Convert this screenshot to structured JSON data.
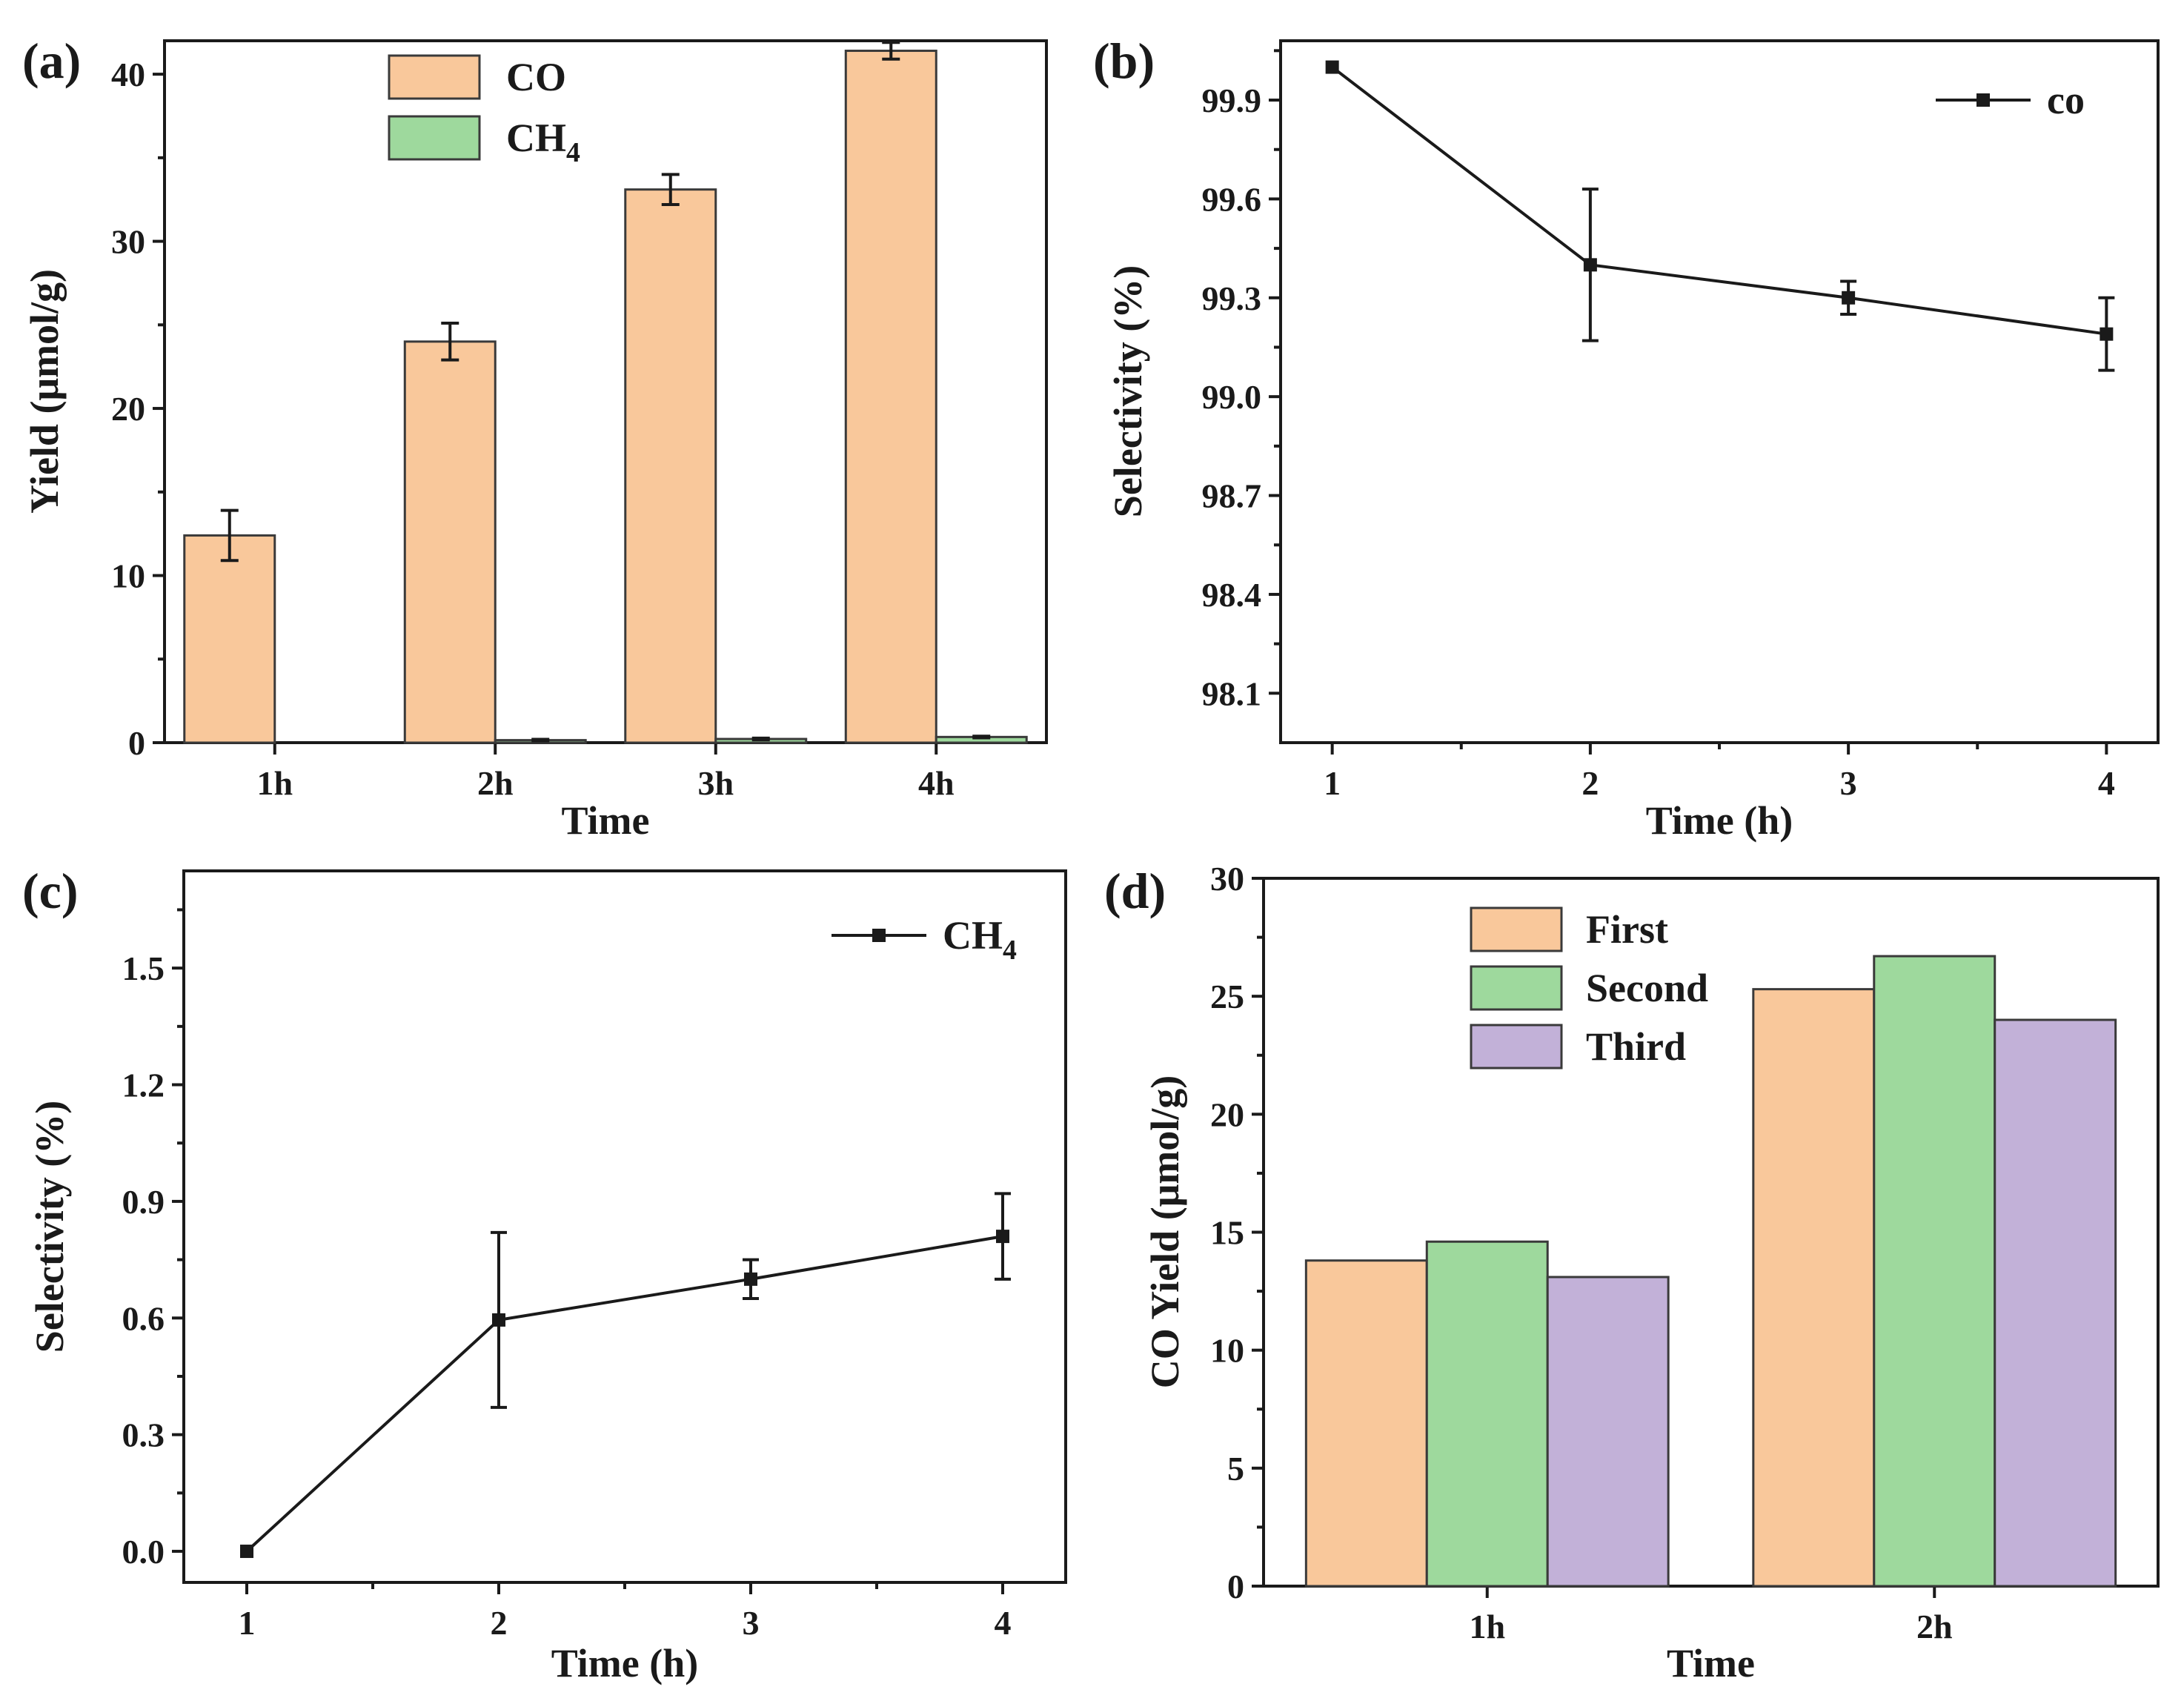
{
  "chart_data": [
    {
      "panel": "(a)",
      "type": "bar",
      "xlabel": "Time",
      "ylabel": "Yield (μmol/g)",
      "ylim": [
        0,
        42
      ],
      "yticks": [
        "0",
        "10",
        "20",
        "30",
        "40"
      ],
      "categories": [
        "1h",
        "2h",
        "3h",
        "4h"
      ],
      "series": [
        {
          "name": "CO",
          "color": "#f9c89b",
          "values": [
            12.4,
            24.0,
            33.1,
            41.4
          ],
          "errors": [
            1.5,
            1.1,
            0.9,
            0.5
          ]
        },
        {
          "name": "CH",
          "sub": "4",
          "color": "#9ed99d",
          "values": [
            0.0,
            0.15,
            0.22,
            0.34
          ],
          "errors": [
            0.0,
            0.05,
            0.05,
            0.05
          ]
        }
      ],
      "legend": "top-center"
    },
    {
      "panel": "(b)",
      "type": "line",
      "xlabel": "Time (h)",
      "ylabel": "Selectivity (%)",
      "xlim": [
        0.8,
        4.2
      ],
      "ylim": [
        97.95,
        100.08
      ],
      "xticks": [
        "1",
        "2",
        "3",
        "4"
      ],
      "yticks": [
        "98.1",
        "98.4",
        "98.7",
        "99.0",
        "99.3",
        "99.6",
        "99.9"
      ],
      "series": [
        {
          "name": "co",
          "x": [
            1,
            2,
            3,
            4
          ],
          "y": [
            100.0,
            99.4,
            99.3,
            99.19
          ],
          "errors": [
            0.0,
            0.23,
            0.05,
            0.11
          ]
        }
      ],
      "legend": "top-right"
    },
    {
      "panel": "(c)",
      "type": "line",
      "xlabel": "Time (h)",
      "ylabel": "Selectivity (%)",
      "xlim": [
        0.75,
        4.25
      ],
      "ylim": [
        -0.08,
        1.75
      ],
      "xticks": [
        "1",
        "2",
        "3",
        "4"
      ],
      "yticks": [
        "0.0",
        "0.3",
        "0.6",
        "0.9",
        "1.2",
        "1.5"
      ],
      "series": [
        {
          "name": "CH",
          "sub": "4",
          "x": [
            1,
            2,
            3,
            4
          ],
          "y": [
            0.0,
            0.595,
            0.7,
            0.81
          ],
          "errors": [
            0.0,
            0.225,
            0.05,
            0.11
          ]
        }
      ],
      "legend": "top-right"
    },
    {
      "panel": "(d)",
      "type": "bar",
      "xlabel": "Time",
      "ylabel": "CO Yield (μmol/g)",
      "ylim": [
        0,
        30
      ],
      "yticks": [
        "0",
        "5",
        "10",
        "15",
        "20",
        "25",
        "30"
      ],
      "categories": [
        "1h",
        "2h"
      ],
      "series": [
        {
          "name": "First",
          "color": "#f9c89b",
          "values": [
            13.8,
            25.3
          ]
        },
        {
          "name": "Second",
          "color": "#9ed99d",
          "values": [
            14.6,
            26.7
          ]
        },
        {
          "name": "Third",
          "color": "#c2b1d8",
          "values": [
            13.1,
            24.0
          ]
        }
      ],
      "legend": "top-left"
    }
  ]
}
